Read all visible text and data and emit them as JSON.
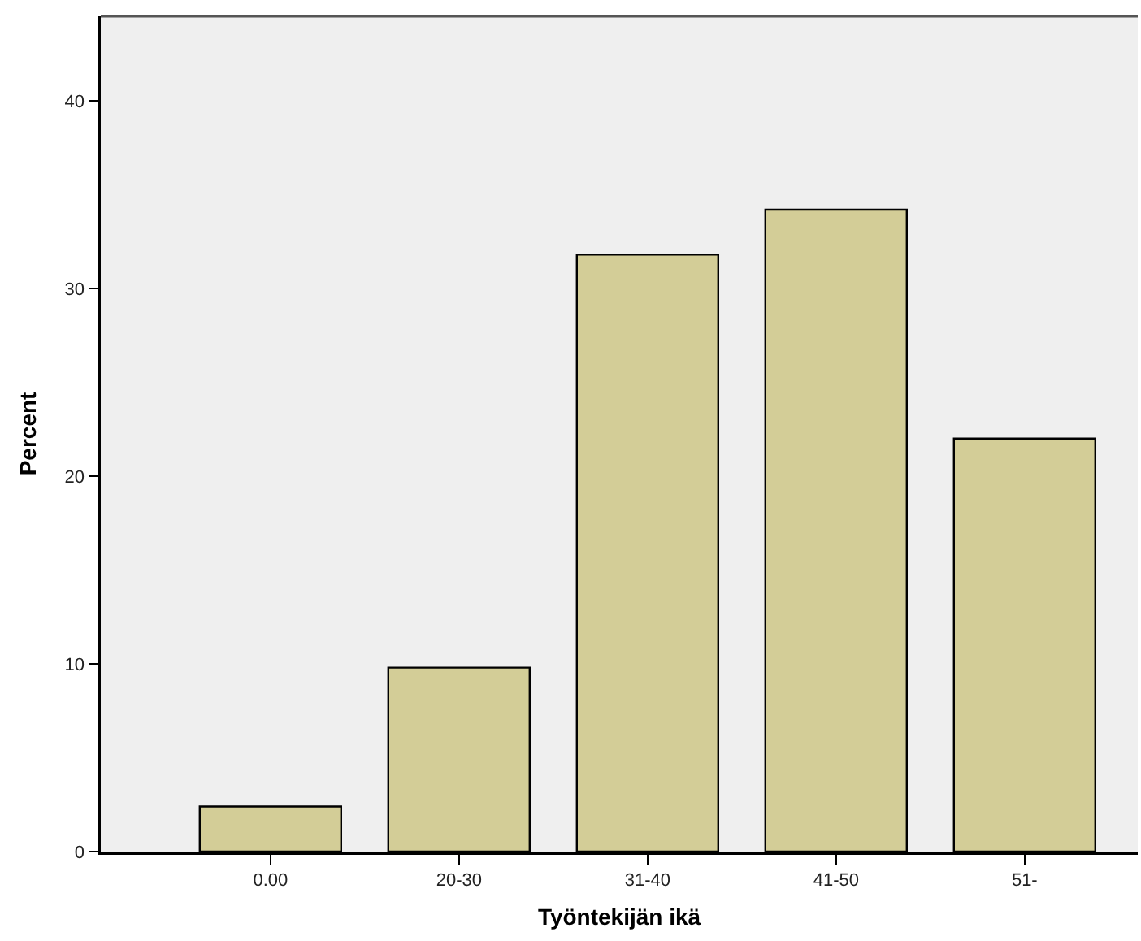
{
  "chart_data": {
    "type": "bar",
    "xlabel": "Työntekijän ikä",
    "ylabel": "Percent",
    "categories": [
      "0.00",
      "20-30",
      "31-40",
      "41-50",
      "51-"
    ],
    "values": [
      2.4,
      9.8,
      31.8,
      34.2,
      22.0
    ],
    "color": "#d3cd97",
    "ylim": [
      0,
      44.5
    ],
    "yticks": [
      0,
      10,
      20,
      30,
      40
    ],
    "grid": false
  }
}
